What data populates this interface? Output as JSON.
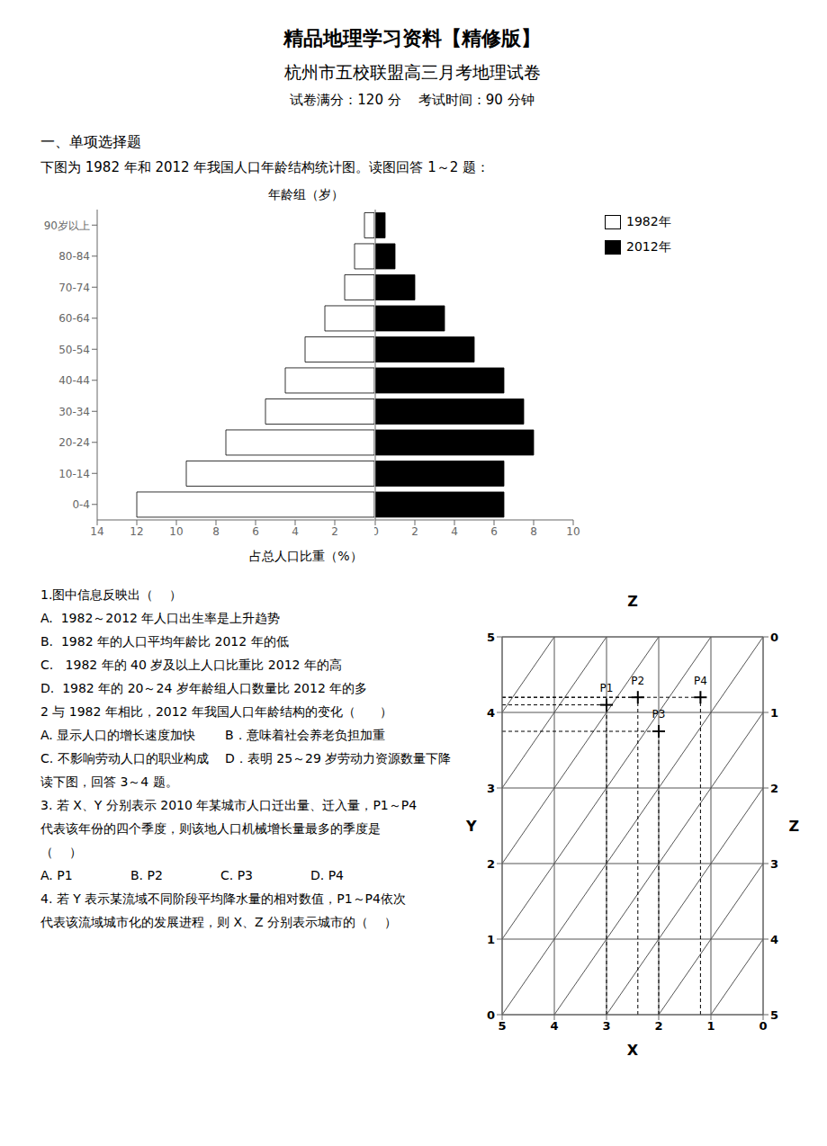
{
  "title": "精品地理学习资料【精修版】",
  "subtitle": [
    "杭州市五校联盟高三月考地理试卷",
    "试卷满分：120 分    考试时间：90 分钟"
  ],
  "section": "一、单项选择题",
  "intro": "下图为 1982 年和 2012 年我国人口年龄结构统计图。读图回答 1～2 题：",
  "annotations": [
    [
      "1.图中信息反映出（    ）"
    ],
    [
      "A.  1982～2012 年人口出生率是上升趋势"
    ],
    [
      "B.  1982 年的人口平均年龄比 2012 年的低"
    ],
    [
      "C.   1982 年的 40 岁及以上人口比重比 2012 年的高"
    ],
    [
      "D.  1982 年的 20～24 岁年龄组人口数量比 2012 年的多"
    ],
    [
      "2 与 1982 年相比，2012 年我国人口年龄结构的变化（      ）"
    ],
    [
      "A. 显示人口的增长速度加快",
      "B．意味着社会养老负担加重"
    ],
    [
      "C. 不影响劳动人口的职业构成",
      "D．表明 25～29 岁劳动力资源数量下降"
    ],
    [
      "读下图，回答 3～4 题。"
    ],
    [
      "3. 若 X、Y 分别表示 2010 年某城市人口迁出量、迁入量，P1～P4"
    ],
    [
      "代表该年份的四个季度，则该地人口机械增长量最多的季度是"
    ],
    [
      "（    ）"
    ],
    [
      "A. P1",
      "B. P2",
      "C. P3",
      "D. P4"
    ],
    [
      "4. 若 Y 表示某流域不同阶段平均降水量的相对数值，P1～P4依次"
    ],
    [
      "代表该流域城市化的发展进程，则 X、Z 分别表示城市的（    ）"
    ]
  ],
  "chart_data": [
    {
      "type": "bar",
      "orientation": "horizontal",
      "title": "年龄组（岁）",
      "xlabel": "占总人口比重（%）",
      "categories": [
        "0-4",
        "10-14",
        "20-24",
        "30-34",
        "40-44",
        "50-54",
        "60-64",
        "70-74",
        "80-84",
        "90岁以上"
      ],
      "series": [
        {
          "name": "1982年",
          "color": "#ffffff",
          "values": [
            12.0,
            9.5,
            7.5,
            5.5,
            4.5,
            3.5,
            2.5,
            1.5,
            1.0,
            0.5
          ]
        },
        {
          "name": "2012年",
          "color": "#000000",
          "axis": "x2",
          "values": [
            6.5,
            6.5,
            8.0,
            7.5,
            6.5,
            5.0,
            3.5,
            2.0,
            1.0,
            0.5
          ]
        }
      ],
      "xlim": [
        0,
        14
      ],
      "xticks": [
        2,
        4,
        6,
        8,
        10,
        12,
        14
      ],
      "x2lim": [
        0,
        10
      ],
      "x2ticks": [
        0,
        2,
        4,
        6,
        8,
        10
      ],
      "legend": "upper right",
      "grid": false
    },
    {
      "type": "scatter",
      "xlabel": "X",
      "ylabel": "Y",
      "x2label": "Z",
      "y2label": "Z",
      "x": [
        3.0,
        2.4,
        2.0,
        1.2
      ],
      "values": [
        4.1,
        4.2,
        3.75,
        4.2
      ],
      "point_labels": [
        "P1",
        "P2",
        "P3",
        "P4"
      ],
      "xlim": [
        0,
        5
      ],
      "xticks": [
        0,
        1,
        2,
        3,
        4,
        5
      ],
      "ylim": [
        0,
        5
      ],
      "yticks": [
        0,
        1,
        2,
        3,
        4,
        5
      ],
      "x2lim": [
        0,
        5
      ],
      "x2ticks": [
        0,
        1,
        2,
        3,
        4,
        5
      ],
      "y2lim": [
        0,
        5
      ],
      "y2ticks": [
        0,
        1,
        2,
        3,
        4,
        5
      ],
      "grid": true,
      "marker": "plus"
    }
  ]
}
